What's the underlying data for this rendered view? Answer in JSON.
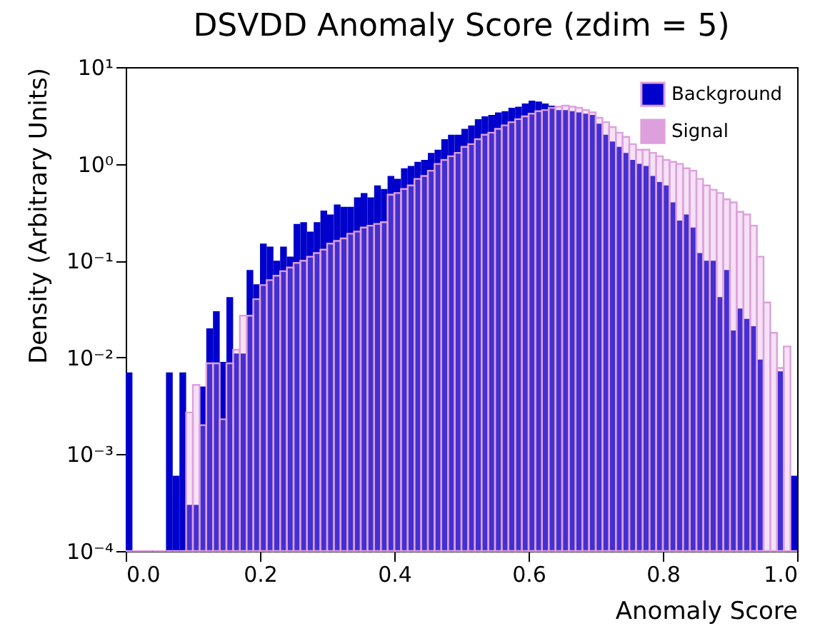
{
  "chart_data": {
    "type": "histogram",
    "title": "DSVDD Anomaly Score (zdim = 5)",
    "xlabel": "Anomaly Score",
    "ylabel": "Density (Arbitrary Units)",
    "log": true,
    "legend": "top right",
    "xlim": [
      0,
      1
    ],
    "ylim": [
      0.0001,
      10
    ],
    "xticks": [
      {
        "value": 0,
        "label": "0.0"
      },
      {
        "value": 0.2,
        "label": "0.2"
      },
      {
        "value": 0.4,
        "label": "0.4"
      },
      {
        "value": 0.6,
        "label": "0.6"
      },
      {
        "value": 0.8,
        "label": "0.8"
      },
      {
        "value": 1,
        "label": "1.0"
      }
    ],
    "yticks": [
      {
        "value": 0.0001,
        "label": "10⁻⁴"
      },
      {
        "value": 0.001,
        "label": "10⁻³"
      },
      {
        "value": 0.01,
        "label": "10⁻²"
      },
      {
        "value": 0.1,
        "label": "10⁻¹"
      },
      {
        "value": 1,
        "label": "10⁰"
      },
      {
        "value": 10,
        "label": "10¹"
      }
    ],
    "bins": [
      0,
      0.01,
      0.02,
      0.03,
      0.04,
      0.05,
      0.06,
      0.07,
      0.08,
      0.09,
      0.1,
      0.11,
      0.12,
      0.13,
      0.14,
      0.15,
      0.16,
      0.17,
      0.18,
      0.19,
      0.2,
      0.21,
      0.22,
      0.23,
      0.24,
      0.25,
      0.26,
      0.27,
      0.28,
      0.29,
      0.3,
      0.31,
      0.32,
      0.33,
      0.34,
      0.35,
      0.36,
      0.37,
      0.38,
      0.39,
      0.4,
      0.41,
      0.42,
      0.43,
      0.44,
      0.45,
      0.46,
      0.47,
      0.48,
      0.49,
      0.5,
      0.51,
      0.52,
      0.53,
      0.54,
      0.55,
      0.56,
      0.57,
      0.58,
      0.59,
      0.6,
      0.61,
      0.62,
      0.63,
      0.64,
      0.65,
      0.66,
      0.67,
      0.68,
      0.69,
      0.7,
      0.71,
      0.72,
      0.73,
      0.74,
      0.75,
      0.76,
      0.77,
      0.78,
      0.79,
      0.8,
      0.81,
      0.82,
      0.83,
      0.84,
      0.85,
      0.86,
      0.87,
      0.88,
      0.89,
      0.9,
      0.91,
      0.92,
      0.93,
      0.94,
      0.95,
      0.96,
      0.97,
      0.98,
      0.99,
      1
    ],
    "series": [
      {
        "name": "Background",
        "color": "#0000cc",
        "values": [
          0.007,
          null,
          null,
          null,
          null,
          null,
          0.007,
          0.0006,
          0.007,
          0.0003,
          0.0003,
          0.005,
          0.02,
          0.03,
          0.009,
          0.042,
          0.011,
          0.011,
          0.08,
          0.057,
          0.15,
          0.14,
          0.1,
          0.14,
          0.11,
          0.24,
          0.25,
          0.2,
          0.25,
          0.33,
          0.3,
          0.38,
          0.36,
          0.36,
          0.45,
          0.5,
          0.45,
          0.6,
          0.55,
          0.75,
          0.7,
          0.9,
          0.95,
          1.05,
          1.1,
          1.3,
          1.4,
          1.8,
          2,
          2,
          2.3,
          2.5,
          2.9,
          3.1,
          3.2,
          3.4,
          3.5,
          3.8,
          3.9,
          4.2,
          4.5,
          4.4,
          4.2,
          4,
          3.6,
          3.6,
          3.5,
          3.4,
          3.3,
          3.2,
          2.6,
          2,
          1.7,
          1.5,
          1.3,
          1.1,
          1,
          0.95,
          0.75,
          0.65,
          0.6,
          0.4,
          0.26,
          0.3,
          0.22,
          0.12,
          0.1,
          0.1,
          0.042,
          0.08,
          0.019,
          0.032,
          0.025,
          0.021,
          0.0095,
          null,
          null,
          0.0072,
          null,
          0.0006
        ]
      },
      {
        "name": "Signal",
        "color": "#dda0dd",
        "values": [
          null,
          null,
          null,
          null,
          null,
          null,
          null,
          null,
          null,
          0.0027,
          0.0052,
          0.002,
          0.0087,
          0.0087,
          0.0023,
          0.0087,
          0.012,
          0.027,
          0.027,
          0.04,
          0.056,
          0.063,
          0.07,
          0.078,
          0.085,
          0.095,
          0.1,
          0.11,
          0.12,
          0.13,
          0.15,
          0.16,
          0.17,
          0.19,
          0.2,
          0.22,
          0.23,
          0.24,
          0.25,
          0.48,
          0.5,
          0.55,
          0.6,
          0.7,
          0.75,
          0.85,
          1,
          1.1,
          1.2,
          1.3,
          1.5,
          1.6,
          1.8,
          2,
          2.1,
          2.3,
          2.5,
          2.7,
          2.9,
          3.1,
          3.3,
          3.5,
          3.6,
          3.8,
          3.9,
          4,
          3.9,
          3.8,
          3.6,
          3.4,
          3,
          2.7,
          2.4,
          2.1,
          1.9,
          1.6,
          1.4,
          1.4,
          1.3,
          1.2,
          1.1,
          1.05,
          1,
          0.9,
          0.85,
          0.7,
          0.6,
          0.54,
          0.5,
          0.43,
          0.4,
          0.32,
          0.3,
          0.23,
          0.11,
          0.037,
          0.018,
          0.0078,
          0.013,
          null
        ]
      }
    ]
  }
}
